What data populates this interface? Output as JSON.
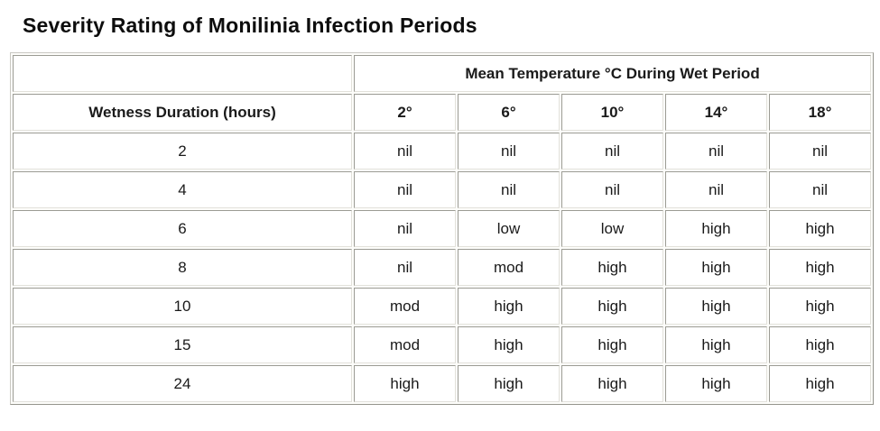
{
  "page": {
    "title": "Severity Rating of Monilinia Infection Periods"
  },
  "chart_data": {
    "type": "table",
    "title": "Severity Rating of Monilinia Infection Periods",
    "column_group_header": "Mean Temperature °C During Wet Period",
    "row_header": "Wetness Duration (hours)",
    "columns": [
      "2°",
      "6°",
      "10°",
      "14°",
      "18°"
    ],
    "rows": [
      {
        "duration": "2",
        "values": [
          "nil",
          "nil",
          "nil",
          "nil",
          "nil"
        ]
      },
      {
        "duration": "4",
        "values": [
          "nil",
          "nil",
          "nil",
          "nil",
          "nil"
        ]
      },
      {
        "duration": "6",
        "values": [
          "nil",
          "low",
          "low",
          "high",
          "high"
        ]
      },
      {
        "duration": "8",
        "values": [
          "nil",
          "mod",
          "high",
          "high",
          "high"
        ]
      },
      {
        "duration": "10",
        "values": [
          "mod",
          "high",
          "high",
          "high",
          "high"
        ]
      },
      {
        "duration": "15",
        "values": [
          "mod",
          "high",
          "high",
          "high",
          "high"
        ]
      },
      {
        "duration": "24",
        "values": [
          "high",
          "high",
          "high",
          "high",
          "high"
        ]
      }
    ],
    "severity_scale": [
      "nil",
      "low",
      "mod",
      "high"
    ],
    "layout": {
      "grid": true,
      "cell_background": "#ffffff"
    }
  },
  "colors": {
    "page_background": "#ffffff",
    "cell_background": "#ffffff",
    "border_dark": "#9b9b94",
    "border_light": "#e2e1db",
    "text": "#1a1a1a"
  }
}
